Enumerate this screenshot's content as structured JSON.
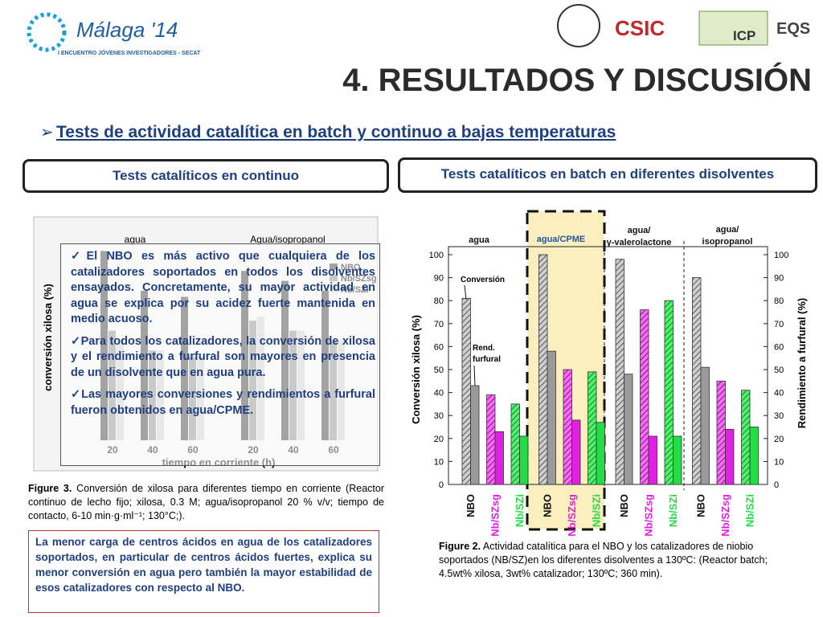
{
  "header": {
    "logo_title": "Málaga '14",
    "logo_subtitle": "I ENCUENTRO JÓVENES INVESTIGADORES - SECAT",
    "logos": [
      "CSIC",
      "ICP",
      "EQS"
    ],
    "title": "4. RESULTADOS Y DISCUSIÓN",
    "subtitle": "Tests de actividad catalítica en batch y continuo a bajas temperaturas"
  },
  "boxes": [
    "Tests catalíticos en continuo",
    "Tests catalíticos en batch en diferentes disolventes"
  ],
  "bullets": [
    "El NBO es más activo que cualquiera de los catalizadores soportados en todos los disolventes ensayados. Concretamente, su mayor actividad en agua se explica por su acidez fuerte mantenida en medio acuoso.",
    "Para todos los catalizadores, la conversión de xilosa y el rendimiento a furfural son mayores en presencia de un disolvente que en agua pura.",
    "Las mayores conversiones y rendimientos a furfural fueron obtenidos en agua/CPME."
  ],
  "figure3": {
    "label": "Figure 3.",
    "text": "Conversión de xilosa para diferentes tiempo en corriente (Reactor continuo de lecho fijo; xilosa, 0.3 M; agua/isopropanol 20 % v/v; tiempo de contacto, 6-10 min·g·ml⁻¹; 130°C;)."
  },
  "note": "La menor carga de centros ácidos en agua de los catalizadores soportados, en particular de centros ácidos fuertes, explica su menor conversión en agua pero también la mayor estabilidad de esos catalizadores con respecto al NBO.",
  "figure2": {
    "label": "Figure 2.",
    "text": "Actividad catalítica para el NBO y los catalizadores de niobio soportados (NB/SZ)en los diferentes disolventes a 130ºC: (Reactor batch; 4.5wt% xilosa, 3wt% catalizador; 130ºC; 360 min)."
  },
  "chart_data": [
    {
      "type": "bar",
      "groups": [
        "agua",
        "Agua/isopropanol"
      ],
      "categories": [
        "20",
        "40",
        "60",
        "20",
        "40",
        "60"
      ],
      "ylabel": "conversión xilosa (%)",
      "xlabel": "tiempo en corriente (h)",
      "ylim": [
        0,
        100
      ],
      "series": [
        {
          "name": "NBO",
          "color": "#333333",
          "values": [
            95,
            75,
            72,
            85,
            80,
            75
          ]
        },
        {
          "name": "Nb/SZsg",
          "color": "#888888",
          "values": [
            55,
            45,
            42,
            60,
            55,
            50
          ]
        },
        {
          "name": "Nb/SZi",
          "color": "#cccccc",
          "values": [
            50,
            45,
            42,
            62,
            55,
            50
          ]
        }
      ]
    },
    {
      "type": "bar",
      "groups": [
        [
          "agua"
        ],
        [
          "agua/CPME"
        ],
        [
          "agua/",
          "γ-valerolactone"
        ],
        [
          "agua/",
          "isopropanol"
        ]
      ],
      "categories": [
        "NBO",
        "Nb/SZsg",
        "Nb/SZi",
        "NBO",
        "Nb/SZsg",
        "Nb/SZi",
        "NBO",
        "Nb/SZsg",
        "Nb/SZi",
        "NBO",
        "Nb/SZsg",
        "Nb/SZi"
      ],
      "bar_colors": [
        "#9a9a9a",
        "#e020e0",
        "#22dd44"
      ],
      "ylabel": "Conversión xilosa (%)",
      "y2label": "Rendimiento a furfural (%)",
      "ylim": [
        0,
        100
      ],
      "yticks": [
        0,
        10,
        20,
        30,
        40,
        50,
        60,
        70,
        80,
        90,
        100
      ],
      "y2lim": [
        0,
        100
      ],
      "y2ticks": [
        0,
        10,
        20,
        30,
        40,
        50,
        60,
        70,
        80,
        90,
        100
      ],
      "series": [
        {
          "name": "Conversión",
          "hatched": true,
          "values": [
            81,
            39,
            35,
            100,
            50,
            49,
            98,
            76,
            80,
            90,
            45,
            41
          ]
        },
        {
          "name": "Rend. furfural",
          "hatched": false,
          "axis": "y2",
          "values": [
            43,
            23,
            21,
            58,
            28,
            27,
            48,
            21,
            21,
            51,
            24,
            25
          ]
        }
      ],
      "annotations": [
        [
          "Conversión"
        ],
        [
          "Rend.",
          "furfural"
        ]
      ]
    }
  ]
}
